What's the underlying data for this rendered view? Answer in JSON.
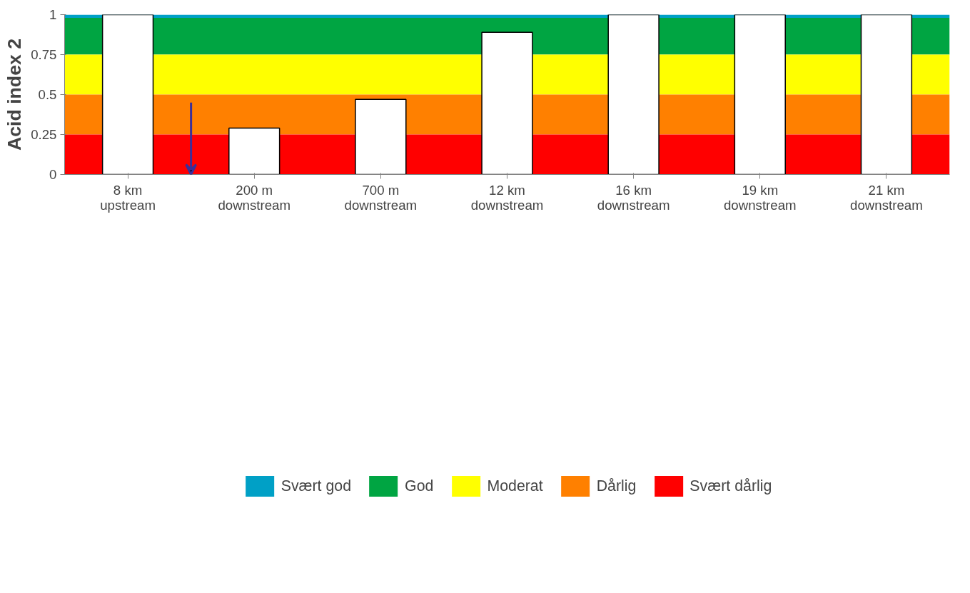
{
  "chart_data": {
    "type": "bar",
    "ylabel": "Acid index 2",
    "categories": [
      "8 km\nupstream",
      "200 m\ndownstream",
      "700 m\ndownstream",
      "12 km\ndownstream",
      "16 km\ndownstream",
      "19 km\ndownstream",
      "21 km\ndownstream"
    ],
    "values": [
      1,
      0.29,
      0.47,
      0.89,
      1,
      1,
      1
    ],
    "color": "#ffffff",
    "ylim": [
      0,
      1
    ],
    "yticks": [
      0,
      0.25,
      0.5,
      0.75,
      1
    ],
    "grid": false,
    "legend": "bottom",
    "bands": [
      {
        "axis": "y",
        "from": 0.98,
        "to": 1,
        "label": "Svært god",
        "color": "#00a0c6"
      },
      {
        "axis": "y",
        "from": 0.75,
        "to": 0.98,
        "label": "God",
        "color": "#00a542"
      },
      {
        "axis": "y",
        "from": 0.5,
        "to": 0.75,
        "label": "Moderat",
        "color": "#ffff00"
      },
      {
        "axis": "y",
        "from": 0.25,
        "to": 0.5,
        "label": "Dårlig",
        "color": "#ff8000"
      },
      {
        "axis": "y",
        "from": 0,
        "to": 0.25,
        "label": "Svært dårlig",
        "color": "#ff0000"
      }
    ]
  }
}
